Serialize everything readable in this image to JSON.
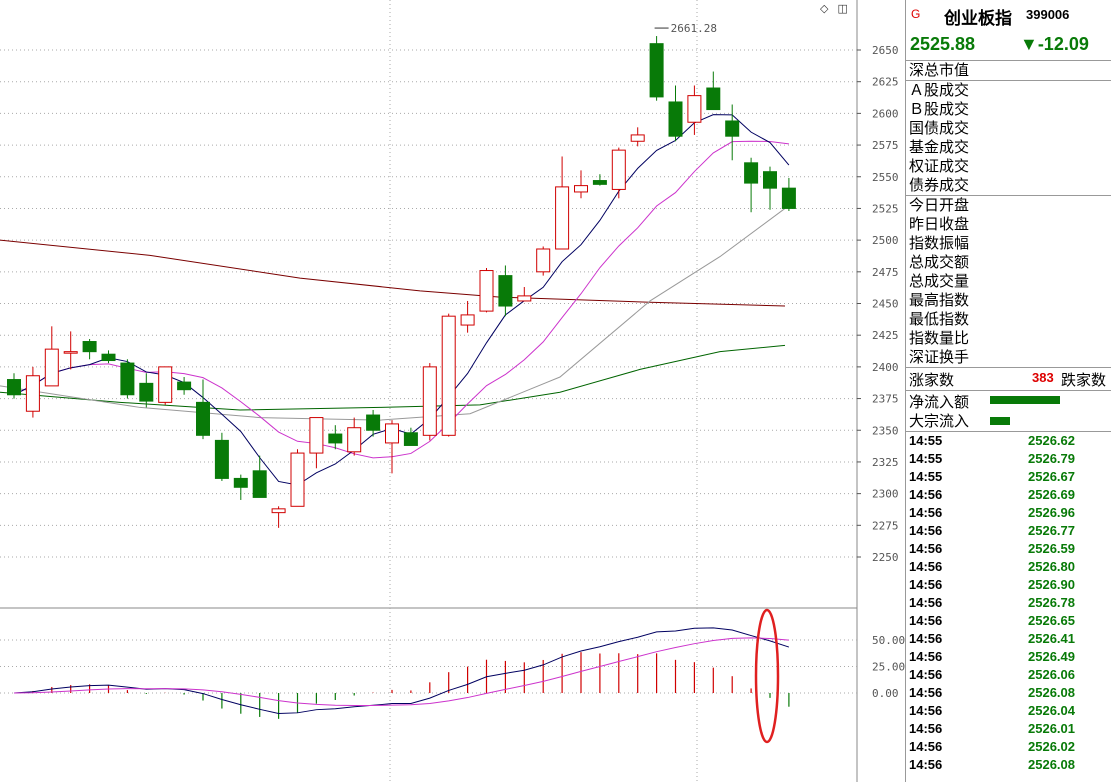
{
  "header": {
    "flag": "G",
    "name": "创业板指",
    "code": "399006",
    "price": "2525.88",
    "change": "▼-12.09"
  },
  "top_icons": {
    "left": "◇",
    "right": "◫"
  },
  "info_labels_1": [
    "深总市值"
  ],
  "info_labels_2": [
    "Ａ股成交",
    "Ｂ股成交",
    "国债成交",
    "基金成交",
    "权证成交",
    "债券成交"
  ],
  "info_labels_3": [
    "今日开盘",
    "昨日收盘",
    "指数振幅",
    "总成交额",
    "总成交量",
    "最高指数",
    "最低指数",
    "指数量比",
    "深证换手"
  ],
  "breadth": {
    "rise_label": "涨家数",
    "count": "383",
    "fall_label": "跌家数"
  },
  "flows": [
    {
      "label": "净流入额",
      "ratio": 1.0
    },
    {
      "label": "大宗流入",
      "ratio": 0.29
    }
  ],
  "ticks": [
    {
      "time": "14:55",
      "price": "2526.62"
    },
    {
      "time": "14:55",
      "price": "2526.79"
    },
    {
      "time": "14:55",
      "price": "2526.67"
    },
    {
      "time": "14:56",
      "price": "2526.69"
    },
    {
      "time": "14:56",
      "price": "2526.96"
    },
    {
      "time": "14:56",
      "price": "2526.77"
    },
    {
      "time": "14:56",
      "price": "2526.59"
    },
    {
      "time": "14:56",
      "price": "2526.80"
    },
    {
      "time": "14:56",
      "price": "2526.90"
    },
    {
      "time": "14:56",
      "price": "2526.78"
    },
    {
      "time": "14:56",
      "price": "2526.65"
    },
    {
      "time": "14:56",
      "price": "2526.41"
    },
    {
      "time": "14:56",
      "price": "2526.49"
    },
    {
      "time": "14:56",
      "price": "2526.06"
    },
    {
      "time": "14:56",
      "price": "2526.08"
    },
    {
      "time": "14:56",
      "price": "2526.04"
    },
    {
      "time": "14:56",
      "price": "2526.01"
    },
    {
      "time": "14:56",
      "price": "2526.02"
    },
    {
      "time": "14:56",
      "price": "2526.08"
    }
  ],
  "colors": {
    "up": "#d00000",
    "down": "#087a08",
    "ma5": "#000060",
    "ma10": "#cc33cc",
    "ma20": "#999999",
    "ma60": "#7a0000",
    "ma120": "#006400",
    "grid": "#aaaaaa"
  },
  "chart_data": {
    "type": "candlestick",
    "y_ticks": [
      "2650",
      "2625",
      "2600",
      "2575",
      "2550",
      "2525",
      "2500",
      "2475",
      "2450",
      "2425",
      "2400",
      "2375",
      "2350",
      "2325",
      "2300",
      "2275",
      "2250"
    ],
    "ylim": [
      2225,
      2665
    ],
    "high_annotation": "2661.28",
    "candles": [
      {
        "o": 2390,
        "h": 2395,
        "l": 2375,
        "c": 2378
      },
      {
        "o": 2365,
        "h": 2400,
        "l": 2360,
        "c": 2393
      },
      {
        "o": 2385,
        "h": 2432,
        "l": 2385,
        "c": 2414
      },
      {
        "o": 2412,
        "h": 2428,
        "l": 2398,
        "c": 2412
      },
      {
        "o": 2420,
        "h": 2422,
        "l": 2406,
        "c": 2412
      },
      {
        "o": 2410,
        "h": 2413,
        "l": 2403,
        "c": 2405
      },
      {
        "o": 2403,
        "h": 2406,
        "l": 2375,
        "c": 2378
      },
      {
        "o": 2387,
        "h": 2395,
        "l": 2368,
        "c": 2373
      },
      {
        "o": 2372,
        "h": 2400,
        "l": 2370,
        "c": 2400
      },
      {
        "o": 2388,
        "h": 2392,
        "l": 2378,
        "c": 2382
      },
      {
        "o": 2372,
        "h": 2390,
        "l": 2343,
        "c": 2346
      },
      {
        "o": 2342,
        "h": 2348,
        "l": 2310,
        "c": 2312
      },
      {
        "o": 2312,
        "h": 2315,
        "l": 2295,
        "c": 2305
      },
      {
        "o": 2318,
        "h": 2330,
        "l": 2297,
        "c": 2297
      },
      {
        "o": 2285,
        "h": 2290,
        "l": 2273,
        "c": 2288
      },
      {
        "o": 2290,
        "h": 2335,
        "l": 2290,
        "c": 2332
      },
      {
        "o": 2332,
        "h": 2360,
        "l": 2320,
        "c": 2360
      },
      {
        "o": 2347,
        "h": 2354,
        "l": 2335,
        "c": 2340
      },
      {
        "o": 2333,
        "h": 2360,
        "l": 2330,
        "c": 2352
      },
      {
        "o": 2362,
        "h": 2366,
        "l": 2345,
        "c": 2350
      },
      {
        "o": 2340,
        "h": 2358,
        "l": 2316,
        "c": 2355
      },
      {
        "o": 2348,
        "h": 2352,
        "l": 2338,
        "c": 2338
      },
      {
        "o": 2346,
        "h": 2403,
        "l": 2342,
        "c": 2400
      },
      {
        "o": 2346,
        "h": 2442,
        "l": 2345,
        "c": 2440
      },
      {
        "o": 2433,
        "h": 2452,
        "l": 2427,
        "c": 2441
      },
      {
        "o": 2444,
        "h": 2478,
        "l": 2443,
        "c": 2476
      },
      {
        "o": 2472,
        "h": 2480,
        "l": 2440,
        "c": 2448
      },
      {
        "o": 2452,
        "h": 2463,
        "l": 2452,
        "c": 2456
      },
      {
        "o": 2475,
        "h": 2495,
        "l": 2472,
        "c": 2493
      },
      {
        "o": 2493,
        "h": 2566,
        "l": 2493,
        "c": 2542
      },
      {
        "o": 2538,
        "h": 2555,
        "l": 2533,
        "c": 2543
      },
      {
        "o": 2547,
        "h": 2552,
        "l": 2543,
        "c": 2544
      },
      {
        "o": 2540,
        "h": 2573,
        "l": 2533,
        "c": 2571
      },
      {
        "o": 2578,
        "h": 2589,
        "l": 2574,
        "c": 2583
      },
      {
        "o": 2655,
        "h": 2661,
        "l": 2610,
        "c": 2613
      },
      {
        "o": 2609,
        "h": 2622,
        "l": 2578,
        "c": 2582
      },
      {
        "o": 2593,
        "h": 2622,
        "l": 2583,
        "c": 2614
      },
      {
        "o": 2620,
        "h": 2633,
        "l": 2603,
        "c": 2603
      },
      {
        "o": 2594,
        "h": 2607,
        "l": 2563,
        "c": 2582
      },
      {
        "o": 2561,
        "h": 2565,
        "l": 2522,
        "c": 2545
      },
      {
        "o": 2554,
        "h": 2558,
        "l": 2524,
        "c": 2541
      },
      {
        "o": 2541,
        "h": 2549,
        "l": 2523,
        "c": 2525
      }
    ],
    "macd_ticks": [
      "50.00",
      "25.00",
      "0.00"
    ],
    "macd_ylim": [
      -35,
      70
    ]
  }
}
